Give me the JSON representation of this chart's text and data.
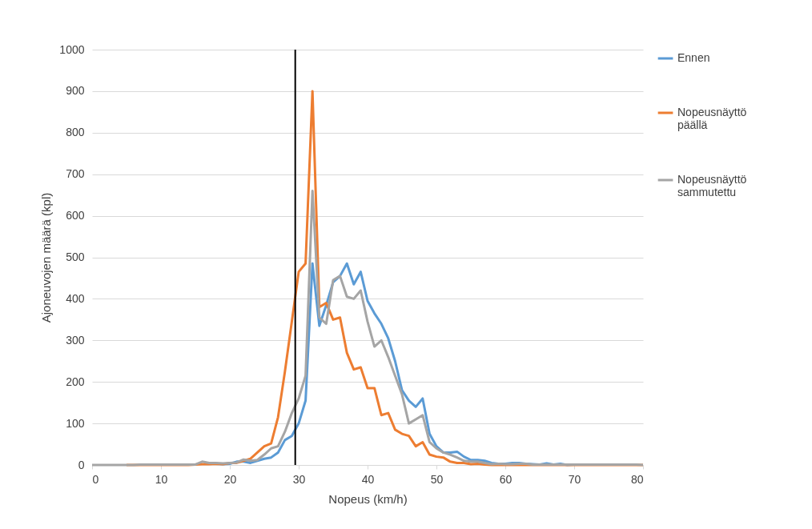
{
  "chart_data": {
    "type": "line",
    "xlabel": "Nopeus (km/h)",
    "ylabel": "Ajoneuvojen määrä (kpl)",
    "x": [
      0,
      1,
      2,
      3,
      4,
      5,
      6,
      7,
      8,
      9,
      10,
      11,
      12,
      13,
      14,
      15,
      16,
      17,
      18,
      19,
      20,
      21,
      22,
      23,
      24,
      25,
      26,
      27,
      28,
      29,
      30,
      31,
      32,
      33,
      34,
      35,
      36,
      37,
      38,
      39,
      40,
      41,
      42,
      43,
      44,
      45,
      46,
      47,
      48,
      49,
      50,
      51,
      52,
      53,
      54,
      55,
      56,
      57,
      58,
      59,
      60,
      61,
      62,
      63,
      64,
      65,
      66,
      67,
      68,
      69,
      70,
      71,
      72,
      73,
      74,
      75,
      76,
      77,
      78,
      79,
      80
    ],
    "series": [
      {
        "name": "Ennen",
        "color": "#5b9bd5",
        "values": [
          null,
          null,
          null,
          null,
          null,
          null,
          null,
          null,
          null,
          null,
          null,
          null,
          null,
          null,
          null,
          null,
          null,
          null,
          3,
          2,
          3,
          8,
          8,
          5,
          10,
          15,
          18,
          30,
          60,
          70,
          100,
          155,
          485,
          335,
          385,
          440,
          455,
          485,
          435,
          465,
          395,
          365,
          340,
          305,
          250,
          180,
          155,
          140,
          160,
          75,
          45,
          30,
          30,
          32,
          20,
          12,
          12,
          10,
          5,
          3,
          3,
          5,
          5,
          3,
          2,
          1,
          4,
          1,
          3,
          0,
          1,
          null,
          null,
          null,
          null,
          null,
          null,
          null,
          null,
          null,
          null
        ]
      },
      {
        "name": "Nopeusnäyttö päällä",
        "color": "#ed7d31",
        "values": [
          null,
          null,
          null,
          null,
          null,
          0,
          0,
          0,
          0,
          0,
          0,
          0,
          0,
          0,
          0,
          1,
          2,
          2,
          3,
          2,
          5,
          5,
          10,
          15,
          30,
          45,
          52,
          115,
          225,
          345,
          465,
          485,
          900,
          380,
          390,
          350,
          355,
          270,
          230,
          235,
          185,
          185,
          120,
          125,
          85,
          75,
          70,
          45,
          55,
          25,
          20,
          18,
          8,
          5,
          5,
          2,
          3,
          1,
          0,
          0,
          0,
          0,
          0,
          0,
          0,
          0,
          0,
          0,
          0,
          0,
          0,
          0,
          0,
          0,
          0,
          0,
          0,
          0,
          0,
          0,
          0
        ]
      },
      {
        "name": "Nopeusnäyttö sammutettu",
        "color": "#a5a5a5",
        "values": [
          0,
          0,
          0,
          0,
          0,
          0,
          0,
          1,
          1,
          1,
          1,
          1,
          1,
          1,
          1,
          1,
          8,
          5,
          5,
          4,
          5,
          6,
          13,
          10,
          12,
          25,
          40,
          45,
          80,
          125,
          160,
          215,
          660,
          355,
          340,
          445,
          455,
          405,
          400,
          420,
          345,
          285,
          300,
          260,
          215,
          170,
          100,
          110,
          120,
          55,
          40,
          30,
          25,
          18,
          10,
          8,
          8,
          5,
          2,
          3,
          2,
          2,
          3,
          3,
          1,
          1,
          1,
          1,
          1,
          1,
          1,
          1,
          1,
          1,
          1,
          1,
          1,
          1,
          1,
          1,
          0
        ]
      }
    ],
    "xlim": [
      0,
      80
    ],
    "xticks": [
      0,
      10,
      20,
      30,
      40,
      50,
      60,
      70,
      80
    ],
    "ylim": [
      0,
      1000
    ],
    "yticks": [
      0,
      100,
      200,
      300,
      400,
      500,
      600,
      700,
      800,
      900,
      1000
    ],
    "ref_lines": [
      {
        "axis": "x",
        "value": 29.5,
        "color": "#000000"
      }
    ],
    "grid": "y",
    "legend": "right"
  }
}
